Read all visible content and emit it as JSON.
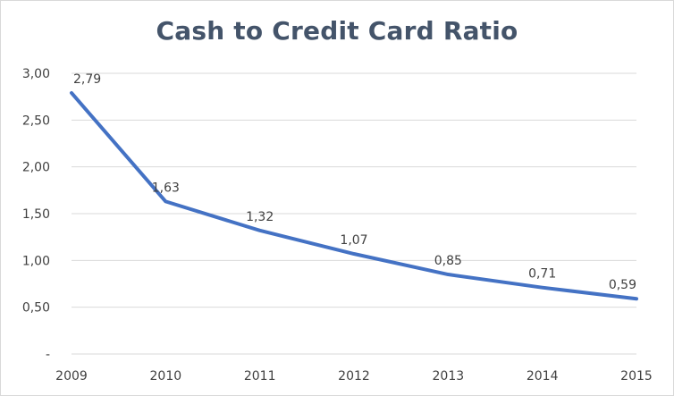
{
  "chart_data": {
    "type": "line",
    "title": "Cash to Credit Card Ratio",
    "xlabel": "",
    "ylabel": "",
    "categories": [
      "2009",
      "2010",
      "2011",
      "2012",
      "2013",
      "2014",
      "2015"
    ],
    "series": [
      {
        "values": [
          2.79,
          1.63,
          1.32,
          1.07,
          0.85,
          0.71,
          0.59
        ],
        "data_labels": [
          "2,79",
          "1,63",
          "1,32",
          "1,07",
          "0,85",
          "0,71",
          "0,59"
        ],
        "color": "#4472c4"
      }
    ],
    "ylim": [
      0,
      3
    ],
    "yticks": [
      0,
      0.5,
      1,
      1.5,
      2,
      2.5,
      3
    ],
    "ytick_labels": [
      "-",
      "0,50",
      "1,00",
      "1,50",
      "2,00",
      "2,50",
      "3,00"
    ],
    "grid": true,
    "legend": "none",
    "colors": {
      "title": "#44546a",
      "gridline": "#d9d9d9",
      "text": "#404040"
    }
  }
}
